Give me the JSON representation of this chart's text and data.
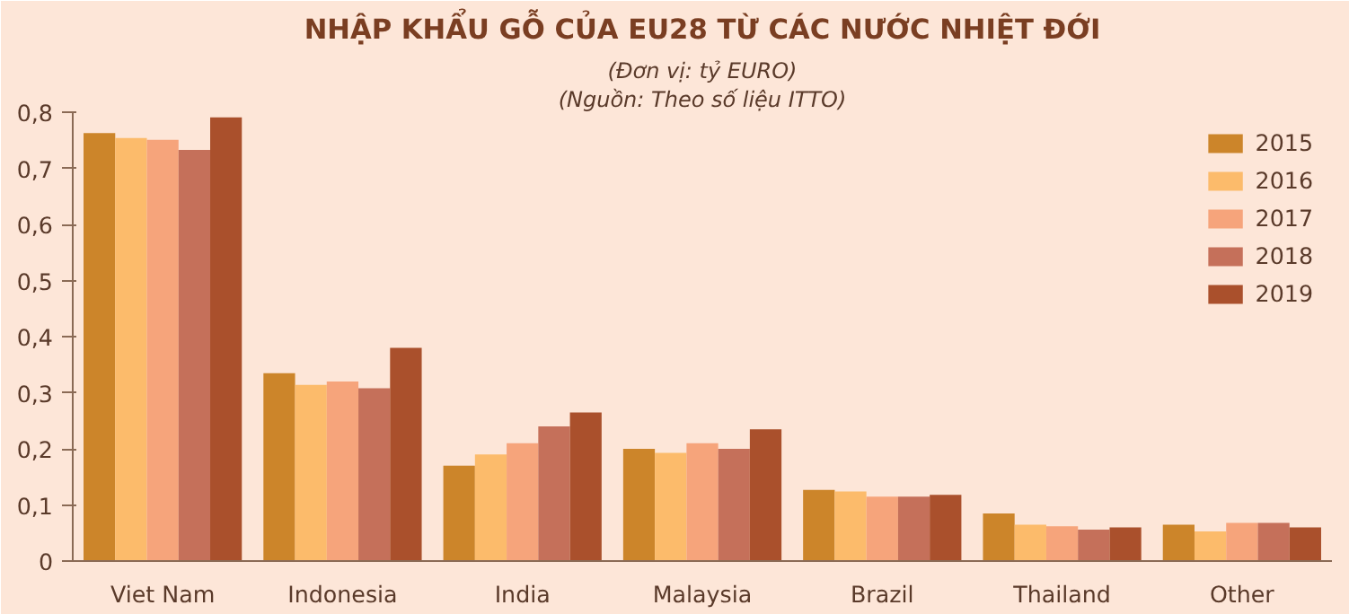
{
  "chart_data": {
    "type": "bar",
    "title": "NHẬP KHẨU GỖ CỦA EU28 TỪ CÁC NƯỚC NHIỆT ĐỚI",
    "subtitle": "(Đơn vị: tỷ EURO)",
    "annotations": [
      "(Nguồn: Theo số liệu ITTO)"
    ],
    "categories": [
      "Viet Nam",
      "Indonesia",
      "India",
      "Malaysia",
      "Brazil",
      "Thailand",
      "Other"
    ],
    "series": [
      {
        "name": "2015",
        "color": "#cc852a",
        "values": [
          0.763,
          0.335,
          0.17,
          0.2,
          0.127,
          0.085,
          0.065
        ]
      },
      {
        "name": "2016",
        "color": "#fcbb6b",
        "values": [
          0.754,
          0.314,
          0.19,
          0.193,
          0.124,
          0.065,
          0.053
        ]
      },
      {
        "name": "2017",
        "color": "#f6a47b",
        "values": [
          0.751,
          0.32,
          0.21,
          0.21,
          0.115,
          0.062,
          0.068
        ]
      },
      {
        "name": "2018",
        "color": "#c5705a",
        "values": [
          0.733,
          0.308,
          0.24,
          0.2,
          0.115,
          0.056,
          0.068
        ]
      },
      {
        "name": "2019",
        "color": "#aa502c",
        "values": [
          0.791,
          0.38,
          0.265,
          0.235,
          0.118,
          0.06,
          0.06
        ]
      }
    ],
    "ylim": [
      0,
      0.8
    ],
    "yticks": [
      {
        "value": 0,
        "label": "0"
      },
      {
        "value": 0.1,
        "label": "0,1"
      },
      {
        "value": 0.2,
        "label": "0,2"
      },
      {
        "value": 0.3,
        "label": "0,3"
      },
      {
        "value": 0.4,
        "label": "0,4"
      },
      {
        "value": 0.5,
        "label": "0,5"
      },
      {
        "value": 0.6,
        "label": "0,6"
      },
      {
        "value": 0.7,
        "label": "0,7"
      },
      {
        "value": 0.8,
        "label": "0,8"
      }
    ],
    "grid": false,
    "legend": "top right"
  }
}
